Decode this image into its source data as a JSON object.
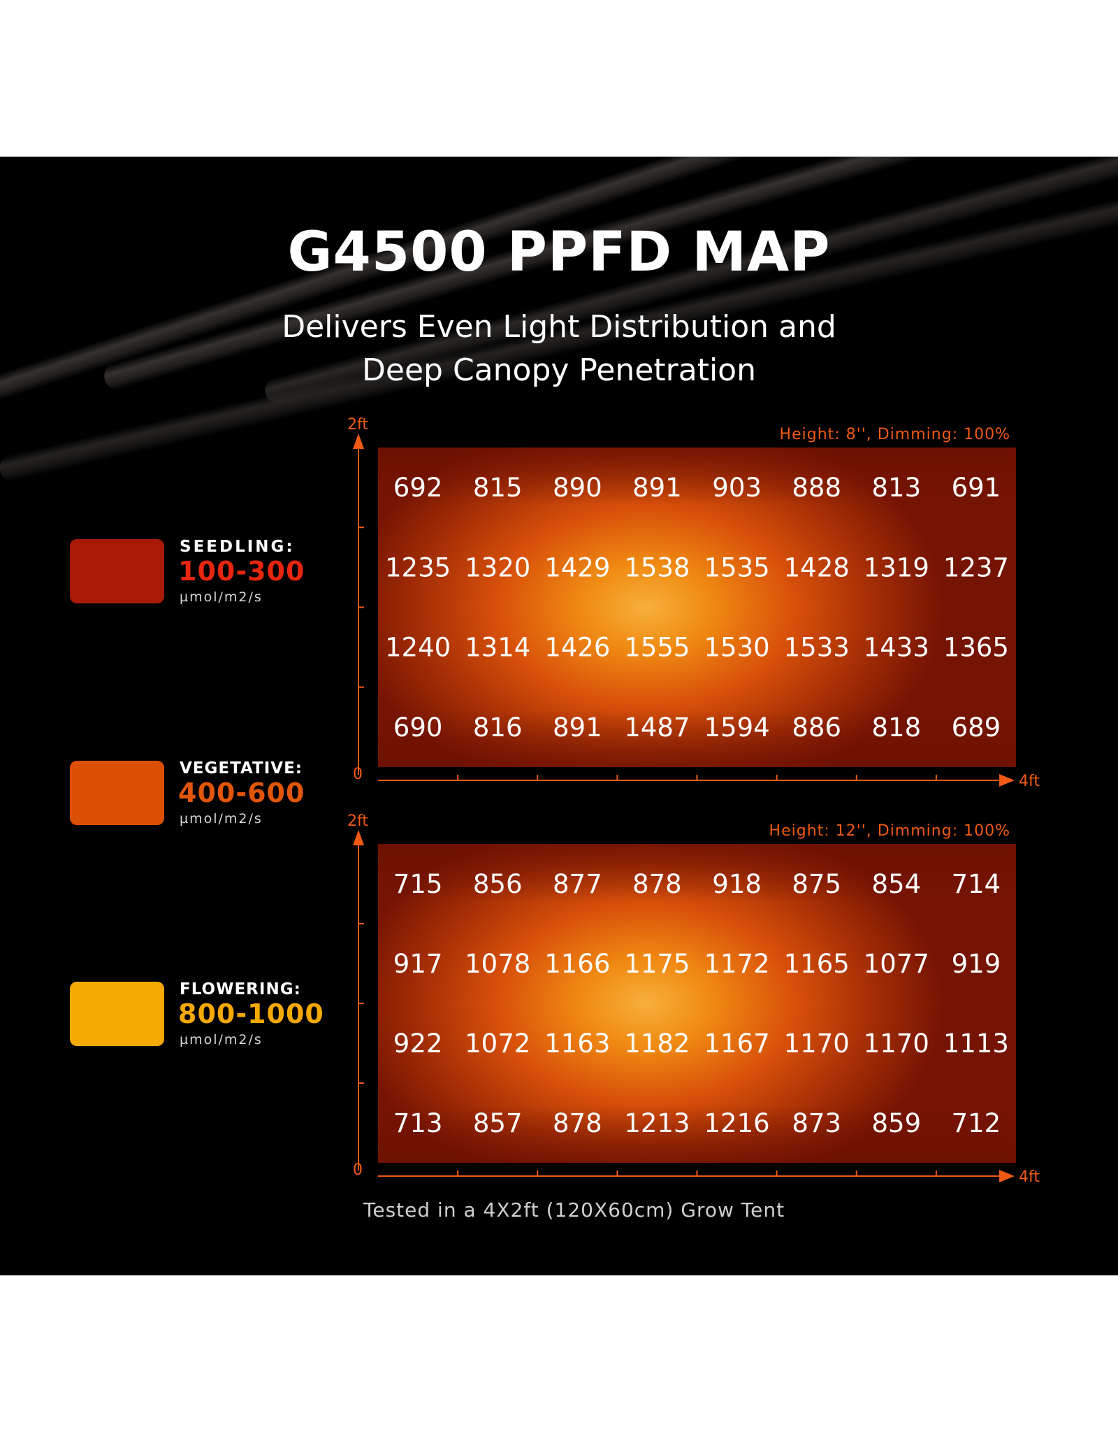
{
  "title": "G4500 PPFD MAP",
  "subtitle_lines": [
    "Delivers Even Light Distribution and",
    "Deep Canopy Penetration"
  ],
  "legend": [
    {
      "name": "SEEDLING:",
      "range": "100-300",
      "unit": "µmol/m2/s",
      "color": "#a81a06",
      "text_color": "#e8260f"
    },
    {
      "name": "VEGETATIVE:",
      "range": "400-600",
      "unit": "µmol/m2/s",
      "color": "#dc5005",
      "text_color": "#e2560a"
    },
    {
      "name": "FLOWERING:",
      "range": "800-1000",
      "unit": "µmol/m2/s",
      "color": "#f5a905",
      "text_color": "#f5a905"
    }
  ],
  "footnote": "Tested in a 4X2ft (120X60cm) Grow Tent",
  "chart_data": [
    {
      "type": "heatmap",
      "title": "Height: 8'', Dimming: 100%",
      "x_axis": {
        "start_label": "0",
        "end_label": "4ft",
        "range": [
          0,
          4
        ]
      },
      "y_axis": {
        "start_label": "0",
        "end_label": "2ft",
        "range": [
          0,
          2
        ]
      },
      "unit": "µmol/m2/s",
      "rows": [
        [
          692,
          815,
          890,
          891,
          903,
          888,
          813,
          691
        ],
        [
          1235,
          1320,
          1429,
          1538,
          1535,
          1428,
          1319,
          1237
        ],
        [
          1240,
          1314,
          1426,
          1555,
          1530,
          1533,
          1433,
          1365
        ],
        [
          690,
          816,
          891,
          1487,
          1594,
          886,
          818,
          689
        ]
      ]
    },
    {
      "type": "heatmap",
      "title": "Height: 12'', Dimming: 100%",
      "x_axis": {
        "start_label": "0",
        "end_label": "4ft",
        "range": [
          0,
          4
        ]
      },
      "y_axis": {
        "start_label": "0",
        "end_label": "2ft",
        "range": [
          0,
          2
        ]
      },
      "unit": "µmol/m2/s",
      "rows": [
        [
          715,
          856,
          877,
          878,
          918,
          875,
          854,
          714
        ],
        [
          917,
          1078,
          1166,
          1175,
          1172,
          1165,
          1077,
          919
        ],
        [
          922,
          1072,
          1163,
          1182,
          1167,
          1170,
          1170,
          1113
        ],
        [
          713,
          857,
          878,
          1213,
          1216,
          873,
          859,
          712
        ]
      ]
    }
  ],
  "colors": {
    "accent": "#f05a14",
    "background": "#000000"
  }
}
